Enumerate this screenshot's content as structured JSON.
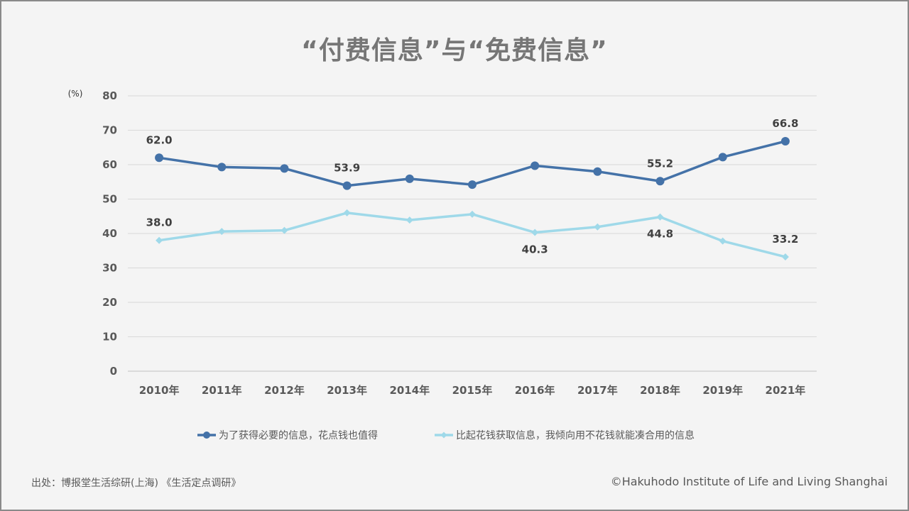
{
  "chart_data": {
    "type": "line",
    "title": "“付费信息”与“免费信息”",
    "unit_label": "(%)",
    "ylim": [
      0,
      80
    ],
    "yticks": [
      0,
      10,
      20,
      30,
      40,
      50,
      60,
      70,
      80
    ],
    "grid": true,
    "legend_position": "bottom",
    "categories": [
      "2010年",
      "2011年",
      "2012年",
      "2013年",
      "2014年",
      "2015年",
      "2016年",
      "2017年",
      "2018年",
      "2019年",
      "2021年"
    ],
    "series": [
      {
        "name": "为了获得必要的信息，花点钱也值得",
        "color": "#4472a8",
        "marker": "circle",
        "values": [
          62.0,
          59.3,
          58.9,
          53.9,
          55.9,
          54.2,
          59.7,
          58.0,
          55.2,
          62.2,
          66.8
        ],
        "data_labels": [
          {
            "index": 0,
            "text": "62.0",
            "position": "above"
          },
          {
            "index": 3,
            "text": "53.9",
            "position": "above"
          },
          {
            "index": 8,
            "text": "55.2",
            "position": "above"
          },
          {
            "index": 10,
            "text": "66.8",
            "position": "above"
          }
        ]
      },
      {
        "name": "比起花钱获取信息，我倾向用不花钱就能凑合用的信息",
        "color": "#9fd9e9",
        "marker": "diamond",
        "values": [
          38.0,
          40.6,
          40.9,
          46.0,
          43.9,
          45.6,
          40.3,
          41.9,
          44.8,
          37.8,
          33.2
        ],
        "data_labels": [
          {
            "index": 0,
            "text": "38.0",
            "position": "above"
          },
          {
            "index": 6,
            "text": "40.3",
            "position": "below"
          },
          {
            "index": 8,
            "text": "44.8",
            "position": "below"
          },
          {
            "index": 10,
            "text": "33.2",
            "position": "above"
          }
        ]
      }
    ]
  },
  "footer": {
    "source": "出处：博报堂生活综研(上海) 《生活定点调研》",
    "copyright": "©Hakuhodo Institute of Life and Living Shanghai"
  }
}
